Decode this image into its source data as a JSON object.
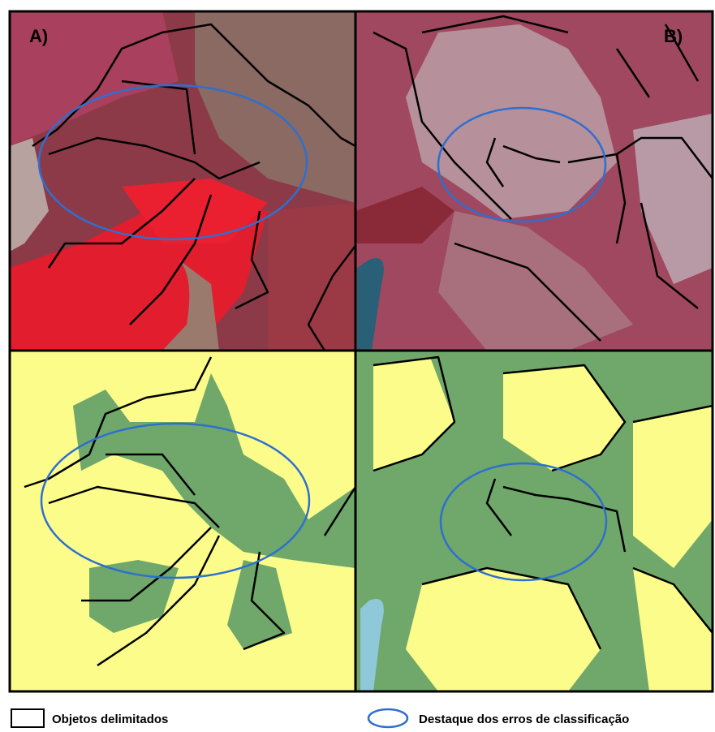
{
  "panels": [
    {
      "label": "A)"
    },
    {
      "label": "B)"
    }
  ],
  "legend": {
    "items": [
      {
        "label": "Objetos delimitados"
      },
      {
        "label": "Destaque dos erros de classificação"
      }
    ]
  }
}
